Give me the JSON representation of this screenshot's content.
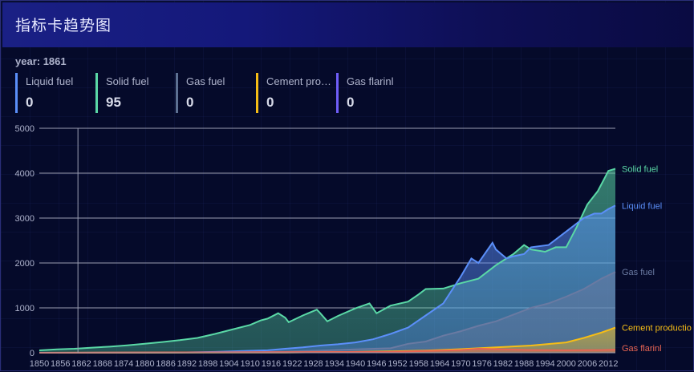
{
  "panel": {
    "title": "指标卡趋势图"
  },
  "indicator": {
    "year_label": "year: 1861"
  },
  "metrics": [
    {
      "label": "Liquid fuel",
      "value": "0",
      "color": "#5b8ff9"
    },
    {
      "label": "Solid fuel",
      "value": "95",
      "color": "#5ad8a6"
    },
    {
      "label": "Gas fuel",
      "value": "0",
      "color": "#5d7092"
    },
    {
      "label": "Cement pro…",
      "value": "0",
      "color": "#f6bd16"
    },
    {
      "label": "Gas flarinl",
      "value": "0",
      "color": "#6f5ef9"
    }
  ],
  "chart_data": {
    "type": "area",
    "stacked": false,
    "x_range": [
      1850,
      2014
    ],
    "ylim": [
      0,
      5000
    ],
    "y_ticks": [
      0,
      1000,
      2000,
      3000,
      4000,
      5000
    ],
    "x_tick_labels": [
      "1850",
      "1856",
      "1862",
      "1868",
      "1874",
      "1880",
      "1886",
      "1892",
      "1898",
      "1904",
      "1910",
      "1916",
      "1922",
      "1928",
      "1934",
      "1940",
      "1946",
      "1952",
      "1958",
      "1964",
      "1970",
      "1976",
      "1982",
      "1988",
      "1994",
      "2000",
      "2006",
      "2012"
    ],
    "grid": true,
    "legend_placement": "line-end",
    "crosshair_x": 1861,
    "series": [
      {
        "name": "Solid fuel",
        "color": "#5ad8a6",
        "points": [
          [
            1850,
            54
          ],
          [
            1855,
            75
          ],
          [
            1860,
            90
          ],
          [
            1861,
            95
          ],
          [
            1865,
            115
          ],
          [
            1870,
            135
          ],
          [
            1875,
            165
          ],
          [
            1880,
            200
          ],
          [
            1885,
            240
          ],
          [
            1890,
            280
          ],
          [
            1895,
            330
          ],
          [
            1900,
            420
          ],
          [
            1905,
            520
          ],
          [
            1910,
            620
          ],
          [
            1913,
            720
          ],
          [
            1915,
            760
          ],
          [
            1918,
            880
          ],
          [
            1920,
            780
          ],
          [
            1921,
            680
          ],
          [
            1925,
            830
          ],
          [
            1929,
            960
          ],
          [
            1930,
            880
          ],
          [
            1932,
            700
          ],
          [
            1935,
            820
          ],
          [
            1940,
            990
          ],
          [
            1944,
            1100
          ],
          [
            1946,
            880
          ],
          [
            1950,
            1050
          ],
          [
            1955,
            1140
          ],
          [
            1958,
            1300
          ],
          [
            1960,
            1420
          ],
          [
            1965,
            1430
          ],
          [
            1970,
            1550
          ],
          [
            1975,
            1650
          ],
          [
            1980,
            1950
          ],
          [
            1985,
            2200
          ],
          [
            1988,
            2400
          ],
          [
            1990,
            2300
          ],
          [
            1994,
            2250
          ],
          [
            1997,
            2350
          ],
          [
            2000,
            2350
          ],
          [
            2003,
            2800
          ],
          [
            2006,
            3300
          ],
          [
            2009,
            3600
          ],
          [
            2011,
            3900
          ],
          [
            2012,
            4050
          ],
          [
            2014,
            4100
          ]
        ]
      },
      {
        "name": "Liquid fuel",
        "color": "#5b8ff9",
        "points": [
          [
            1850,
            0
          ],
          [
            1861,
            0
          ],
          [
            1870,
            1
          ],
          [
            1880,
            3
          ],
          [
            1890,
            8
          ],
          [
            1900,
            20
          ],
          [
            1910,
            45
          ],
          [
            1915,
            55
          ],
          [
            1920,
            90
          ],
          [
            1925,
            120
          ],
          [
            1930,
            160
          ],
          [
            1935,
            190
          ],
          [
            1940,
            230
          ],
          [
            1945,
            300
          ],
          [
            1950,
            420
          ],
          [
            1955,
            560
          ],
          [
            1960,
            830
          ],
          [
            1965,
            1100
          ],
          [
            1970,
            1700
          ],
          [
            1973,
            2100
          ],
          [
            1975,
            2000
          ],
          [
            1979,
            2450
          ],
          [
            1980,
            2300
          ],
          [
            1983,
            2100
          ],
          [
            1985,
            2150
          ],
          [
            1988,
            2200
          ],
          [
            1990,
            2350
          ],
          [
            1995,
            2400
          ],
          [
            2000,
            2700
          ],
          [
            2005,
            3000
          ],
          [
            2008,
            3100
          ],
          [
            2010,
            3100
          ],
          [
            2012,
            3200
          ],
          [
            2014,
            3280
          ]
        ]
      },
      {
        "name": "Gas fuel",
        "color": "#6a7aa2",
        "points": [
          [
            1850,
            0
          ],
          [
            1880,
            0
          ],
          [
            1890,
            3
          ],
          [
            1900,
            8
          ],
          [
            1910,
            15
          ],
          [
            1920,
            25
          ],
          [
            1930,
            50
          ],
          [
            1940,
            75
          ],
          [
            1950,
            100
          ],
          [
            1955,
            200
          ],
          [
            1960,
            250
          ],
          [
            1965,
            380
          ],
          [
            1970,
            480
          ],
          [
            1975,
            600
          ],
          [
            1980,
            700
          ],
          [
            1985,
            850
          ],
          [
            1990,
            1000
          ],
          [
            1995,
            1100
          ],
          [
            2000,
            1250
          ],
          [
            2005,
            1420
          ],
          [
            2010,
            1650
          ],
          [
            2014,
            1800
          ]
        ]
      },
      {
        "name": "Cement production",
        "color": "#f6bd16",
        "points": [
          [
            1850,
            0
          ],
          [
            1920,
            5
          ],
          [
            1930,
            10
          ],
          [
            1940,
            20
          ],
          [
            1950,
            30
          ],
          [
            1960,
            50
          ],
          [
            1970,
            80
          ],
          [
            1980,
            120
          ],
          [
            1990,
            160
          ],
          [
            2000,
            230
          ],
          [
            2005,
            330
          ],
          [
            2010,
            450
          ],
          [
            2014,
            560
          ]
        ]
      },
      {
        "name": "Gas flarinl",
        "color": "#e86452",
        "points": [
          [
            1850,
            0
          ],
          [
            1950,
            20
          ],
          [
            1960,
            40
          ],
          [
            1970,
            60
          ],
          [
            1975,
            90
          ],
          [
            1980,
            80
          ],
          [
            1990,
            60
          ],
          [
            2000,
            55
          ],
          [
            2010,
            60
          ],
          [
            2014,
            70
          ]
        ]
      }
    ],
    "end_labels": [
      {
        "text": "Solid fuel",
        "color": "#5ad8a6"
      },
      {
        "text": "Liquid fuel",
        "color": "#5b8ff9"
      },
      {
        "text": "Gas fuel",
        "color": "#6a7aa2"
      },
      {
        "text": "Cement productio",
        "color": "#f6bd16"
      },
      {
        "text": "Gas flarinl",
        "color": "#e86452"
      }
    ]
  }
}
